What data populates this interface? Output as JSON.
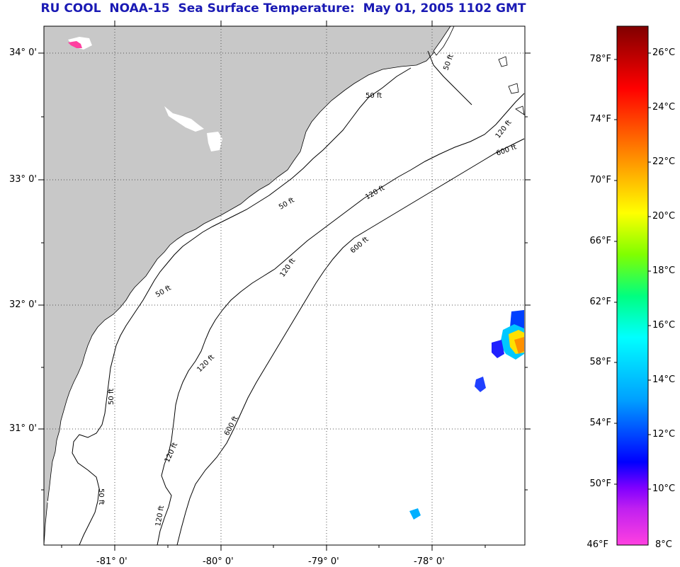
{
  "header": {
    "title": "RU COOL  NOAA-15  Sea Surface Temperature:  May 01, 2005 1102 GMT"
  },
  "map": {
    "latitude_labels": [
      "34° 0'",
      "33° 0'",
      "32° 0'",
      "31° 0'"
    ],
    "longitude_labels": [
      "-81° 0'",
      "-80° 0'",
      "-79° 0'",
      "-78° 0'"
    ],
    "bathymetry_labels": [
      "50 ft",
      "50 ft",
      "50 ft",
      "50 ft",
      "50 ft",
      "50 ft",
      "120 ft",
      "120 ft",
      "120 ft",
      "120 ft",
      "120 ft",
      "120 ft",
      "600 ft",
      "600 ft",
      "600 ft"
    ],
    "colors": {
      "land": "#c8c8c8",
      "ocean": "#ffffff",
      "contour": "#000000",
      "cloud_mask": "#ffffff"
    }
  },
  "colorbar": {
    "fahrenheit_labels": [
      "78°F",
      "74°F",
      "70°F",
      "66°F",
      "62°F",
      "58°F",
      "54°F",
      "50°F",
      "46°F"
    ],
    "celsius_labels": [
      "26°C",
      "24°C",
      "22°C",
      "20°C",
      "18°C",
      "16°C",
      "14°C",
      "12°C",
      "10°C",
      "8°C"
    ],
    "range_celsius": [
      8,
      27
    ],
    "colors": [
      "#ff40e0",
      "#8000ff",
      "#0000ff",
      "#00a0ff",
      "#00ffff",
      "#00ff80",
      "#80ff00",
      "#ffff00",
      "#ff8000",
      "#ff0000",
      "#800000"
    ]
  }
}
